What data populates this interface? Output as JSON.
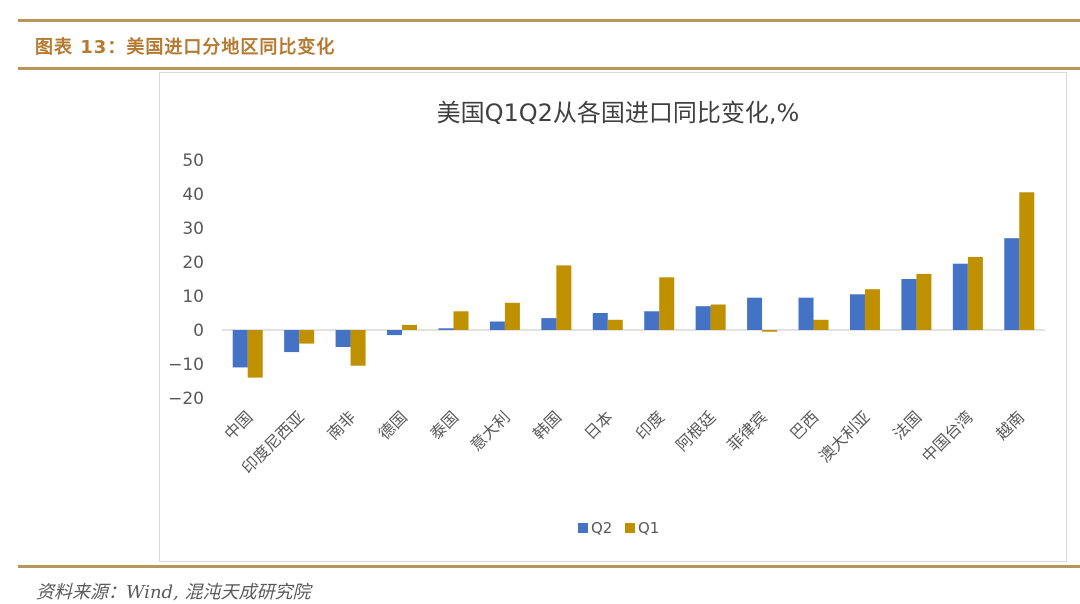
{
  "header": {
    "figure_title": "图表 13：美国进口分地区同比变化"
  },
  "footer": {
    "source": "资料来源：Wind, 混沌天成研究院"
  },
  "colors": {
    "accent_rule": "#b8955a",
    "title": "#b47a32",
    "q2": "#4472c4",
    "q1": "#bf9000"
  },
  "chart_data": {
    "type": "bar",
    "title": "美国Q1Q2从各国进口同比变化,%",
    "xlabel": "",
    "ylabel": "",
    "ylim": [
      -20,
      50
    ],
    "yticks": [
      50,
      40,
      30,
      20,
      10,
      0,
      -10,
      -20
    ],
    "ytick_labels": [
      "50",
      "40",
      "30",
      "20",
      "10",
      "0",
      "−10",
      "−20"
    ],
    "grid": false,
    "legend": "bottom-center",
    "categories": [
      "中国",
      "印度尼西亚",
      "南非",
      "德国",
      "泰国",
      "意大利",
      "韩国",
      "日本",
      "印度",
      "阿根廷",
      "菲律宾",
      "巴西",
      "澳大利亚",
      "法国",
      "中国台湾",
      "越南"
    ],
    "series": [
      {
        "name": "Q2",
        "color": "#4472c4",
        "values": [
          -11,
          -6.5,
          -5,
          -1.5,
          0.5,
          2.5,
          3.5,
          5,
          5.5,
          7,
          9.5,
          9.5,
          10.5,
          15,
          19.5,
          27
        ]
      },
      {
        "name": "Q1",
        "color": "#bf9000",
        "values": [
          -14,
          -4,
          -10.5,
          1.5,
          5.5,
          8,
          19,
          3,
          15.5,
          7.5,
          -0.5,
          3,
          12,
          16.5,
          21.5,
          40.5
        ]
      }
    ]
  }
}
